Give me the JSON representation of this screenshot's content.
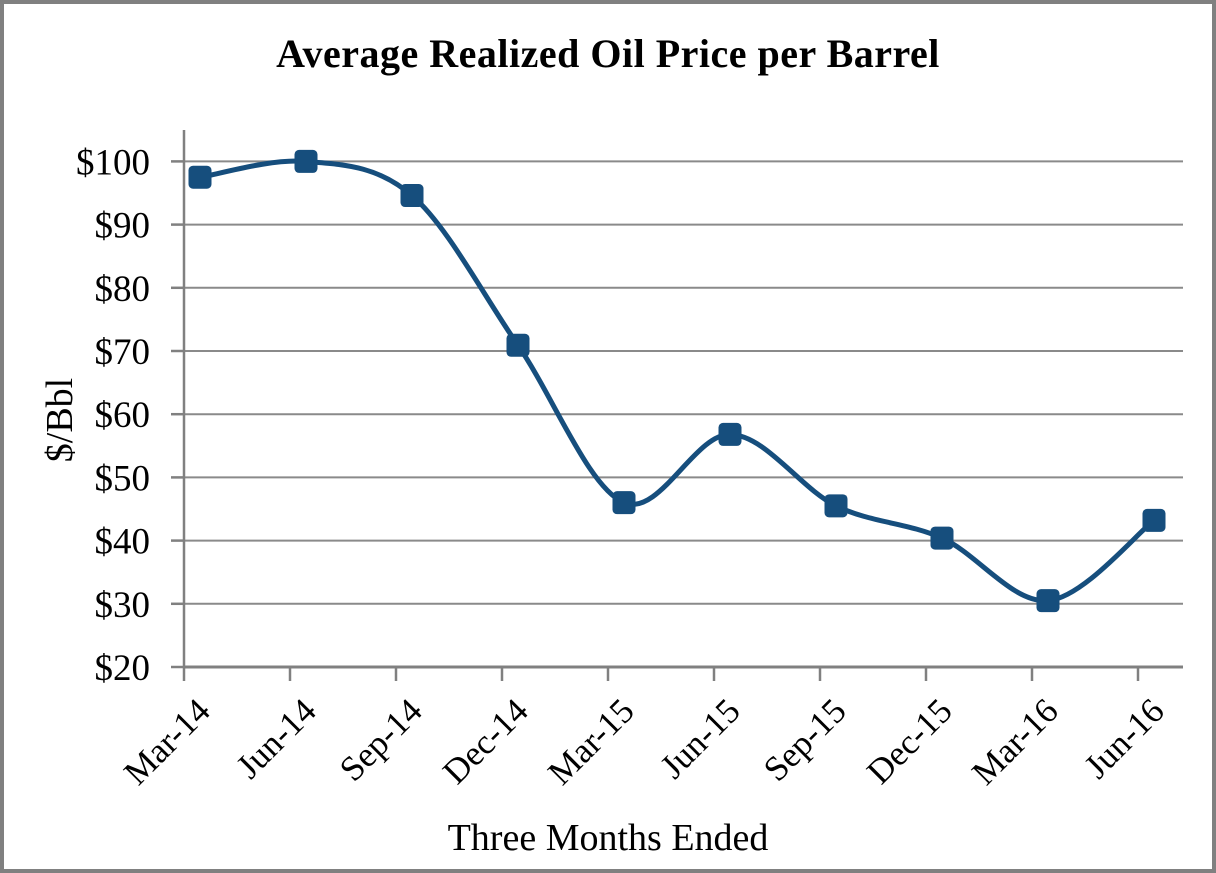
{
  "window": {
    "background": "#FFFFFF",
    "border_color": "#808080"
  },
  "chart_data": {
    "type": "line",
    "title": "Average Realized Oil Price per Barrel",
    "xlabel": "Three Months Ended",
    "ylabel": "$/Bbl",
    "categories": [
      "Mar-14",
      "Jun-14",
      "Sep-14",
      "Dec-14",
      "Mar-15",
      "Jun-15",
      "Sep-15",
      "Dec-15",
      "Mar-16",
      "Jun-16"
    ],
    "values": [
      97.5,
      100.0,
      94.6,
      70.9,
      46.0,
      56.8,
      45.5,
      40.4,
      30.5,
      43.2
    ],
    "ylim": [
      20,
      105
    ],
    "ytick_values": [
      20,
      30,
      40,
      50,
      60,
      70,
      80,
      90,
      100
    ],
    "ytick_labels": [
      "$20",
      "$30",
      "$40",
      "$50",
      "$60",
      "$70",
      "$80",
      "$90",
      "$100"
    ],
    "grid": true,
    "legend": "none",
    "smooth": true,
    "marker": "square",
    "line_color": "#164E7D",
    "marker_color": "#164E7D",
    "grid_color": "#8A8A8A",
    "axis_color": "#808080",
    "text_color": "#000000"
  }
}
